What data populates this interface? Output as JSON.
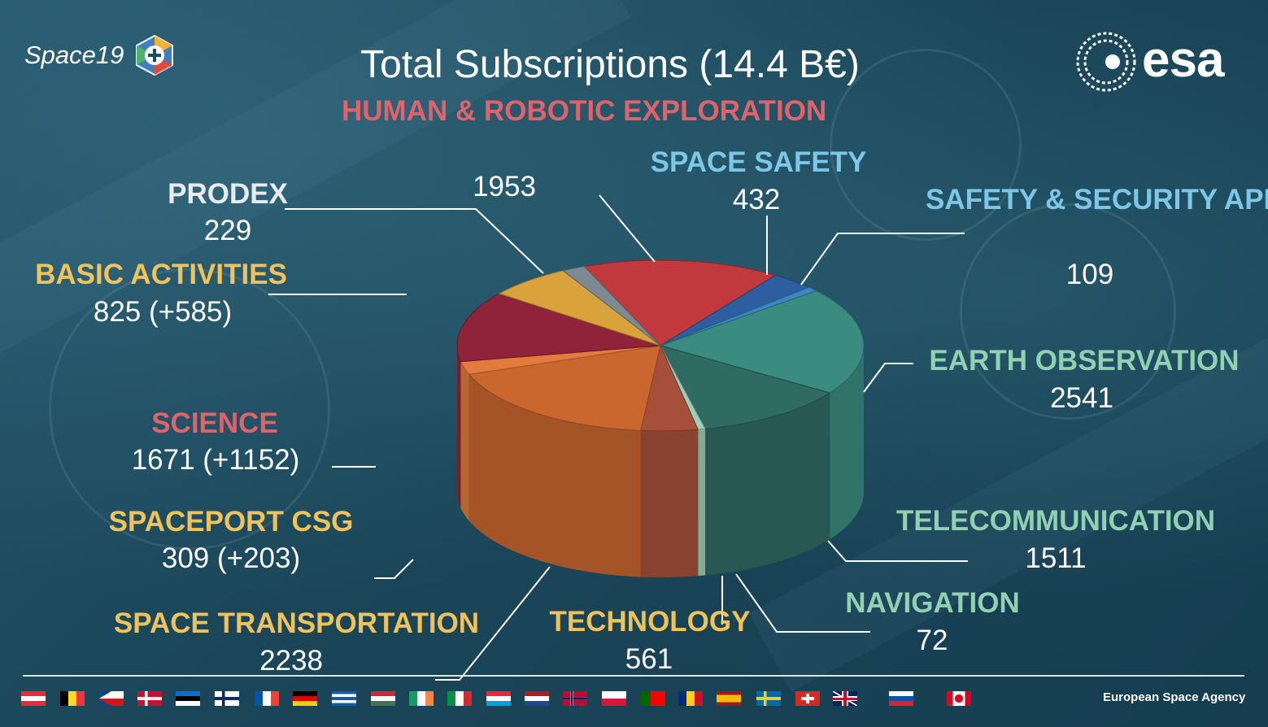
{
  "title": "Total Subscriptions (14.4 B€)",
  "logos": {
    "left": "Space19",
    "right": "esa"
  },
  "footer": "European Space Agency",
  "colors": {
    "background": "#1d4a5e",
    "yellow_label": "#f0c25a",
    "red_label": "#e0626a",
    "blue_label": "#7cc6e6",
    "green_label": "#8fd1b1"
  },
  "flags": [
    "austria",
    "belgium",
    "czech-republic",
    "denmark",
    "estonia",
    "finland",
    "france",
    "germany",
    "greece",
    "hungary",
    "ireland",
    "italy",
    "luxembourg",
    "netherlands",
    "norway",
    "poland",
    "portugal",
    "romania",
    "spain",
    "sweden",
    "switzerland",
    "united-kingdom",
    "slovenia",
    "canada"
  ],
  "chart_data": {
    "type": "pie",
    "title": "Total Subscriptions (14.4 B€)",
    "slices": [
      {
        "name": "HUMAN & ROBOTIC EXPLORATION",
        "value": 1953,
        "display": "1953",
        "color": "#c1383d"
      },
      {
        "name": "SPACE SAFETY",
        "value": 432,
        "display": "432",
        "color": "#2d5fa0"
      },
      {
        "name": "SAFETY & SECURITY APPLICATIONS",
        "value": 109,
        "display": "109",
        "color": "#3a87c4"
      },
      {
        "name": "EARTH OBSERVATION",
        "value": 2541,
        "display": "2541",
        "color": "#3b8c80"
      },
      {
        "name": "TELECOMMUNICATION",
        "value": 1511,
        "display": "1511",
        "color": "#2f6b63"
      },
      {
        "name": "NAVIGATION",
        "value": 72,
        "display": "72",
        "color": "#9fcfb8"
      },
      {
        "name": "TECHNOLOGY",
        "value": 561,
        "display": "561",
        "color": "#a6503b"
      },
      {
        "name": "SPACE TRANSPORTATION",
        "value": 2238,
        "display": "2238",
        "color": "#c9672f"
      },
      {
        "name": "SPACEPORT CSG",
        "value": 309,
        "display": "309 (+203)",
        "color": "#e27b3b"
      },
      {
        "name": "SCIENCE",
        "value": 1671,
        "display": "1671 (+1152)",
        "color": "#8f2339"
      },
      {
        "name": "BASIC ACTIVITIES",
        "value": 825,
        "display": "825 (+585)",
        "color": "#d9a23a"
      },
      {
        "name": "PRODEX",
        "value": 229,
        "display": "229",
        "color": "#7d8a92"
      }
    ]
  }
}
